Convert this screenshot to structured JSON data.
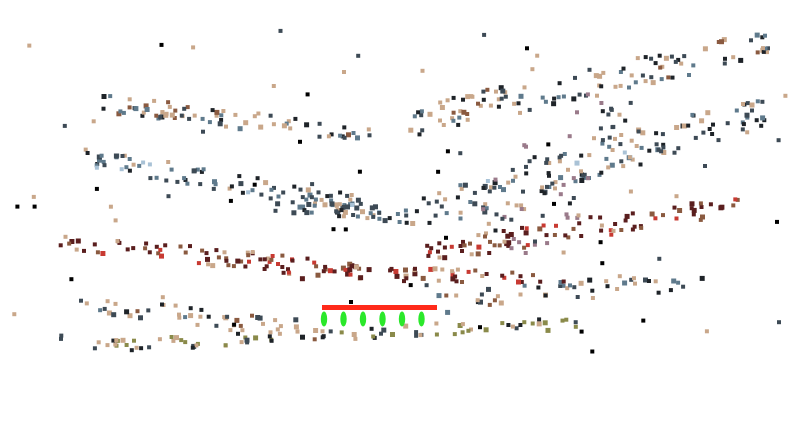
{
  "scene": {
    "background": "#ffffff",
    "palette": {
      "tan": "#c9a78a",
      "slate": "#3d4a55",
      "steel": "#5f7a8c",
      "dark": "#1e2328",
      "brown": "#8a5a40",
      "maroon": "#5a1e1e",
      "red": "#c83a32",
      "olive": "#8a8a4a",
      "mauve": "#9a7a8a",
      "black": "#000000",
      "pale_blue": "#a9c2d6"
    },
    "overlay": {
      "rail_color": "#ff2a1a",
      "marker_color": "#2be82b",
      "marker_count": 6
    }
  }
}
